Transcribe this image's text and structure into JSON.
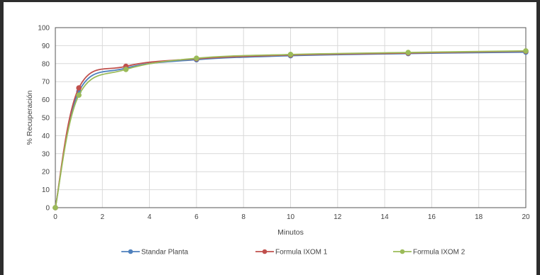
{
  "chart_data": {
    "type": "line",
    "title": "",
    "xlabel": "Minutos",
    "ylabel": "% Recuperación",
    "xlim": [
      0,
      20
    ],
    "ylim": [
      0,
      100
    ],
    "xticks": [
      0,
      2,
      4,
      6,
      8,
      10,
      12,
      14,
      16,
      18,
      20
    ],
    "yticks": [
      0,
      10,
      20,
      30,
      40,
      50,
      60,
      70,
      80,
      90,
      100
    ],
    "grid": true,
    "legend_position": "bottom",
    "x": [
      0,
      1,
      3,
      6,
      10,
      15,
      20
    ],
    "series": [
      {
        "name": "Standar Planta",
        "color": "#4f81bd",
        "values": [
          0,
          64.5,
          77.5,
          82.2,
          84.4,
          85.6,
          86.4
        ]
      },
      {
        "name": "Formula IXOM 1",
        "color": "#c0504d",
        "values": [
          0,
          66.5,
          78.5,
          82.7,
          84.8,
          85.9,
          86.9
        ]
      },
      {
        "name": "Formula IXOM 2",
        "color": "#9bbb59",
        "values": [
          0,
          62.5,
          76.8,
          83.0,
          85.1,
          86.2,
          87.1
        ]
      }
    ]
  }
}
